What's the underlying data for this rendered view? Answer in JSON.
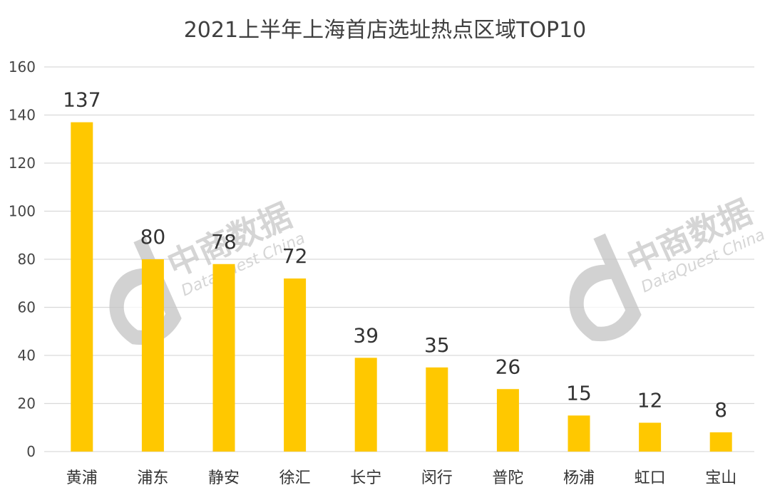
{
  "chart_data": {
    "type": "bar",
    "title": "2021上半年上海首店选址热点区域TOP10",
    "xlabel": "",
    "ylabel": "",
    "categories": [
      "黄浦",
      "浦东",
      "静安",
      "徐汇",
      "长宁",
      "闵行",
      "普陀",
      "杨浦",
      "虹口",
      "宝山"
    ],
    "values": [
      137,
      80,
      78,
      72,
      39,
      35,
      26,
      15,
      12,
      8
    ],
    "ylim": [
      0,
      160
    ],
    "yticks": [
      0,
      20,
      40,
      60,
      80,
      100,
      120,
      140,
      160
    ],
    "grid": true,
    "legend": "none",
    "bar_color": "#FFC800",
    "grid_color": "#d9d9d9",
    "data_labels": true
  },
  "watermark": {
    "brand_cn": "中商数据",
    "brand_en": "DataQuest China"
  }
}
